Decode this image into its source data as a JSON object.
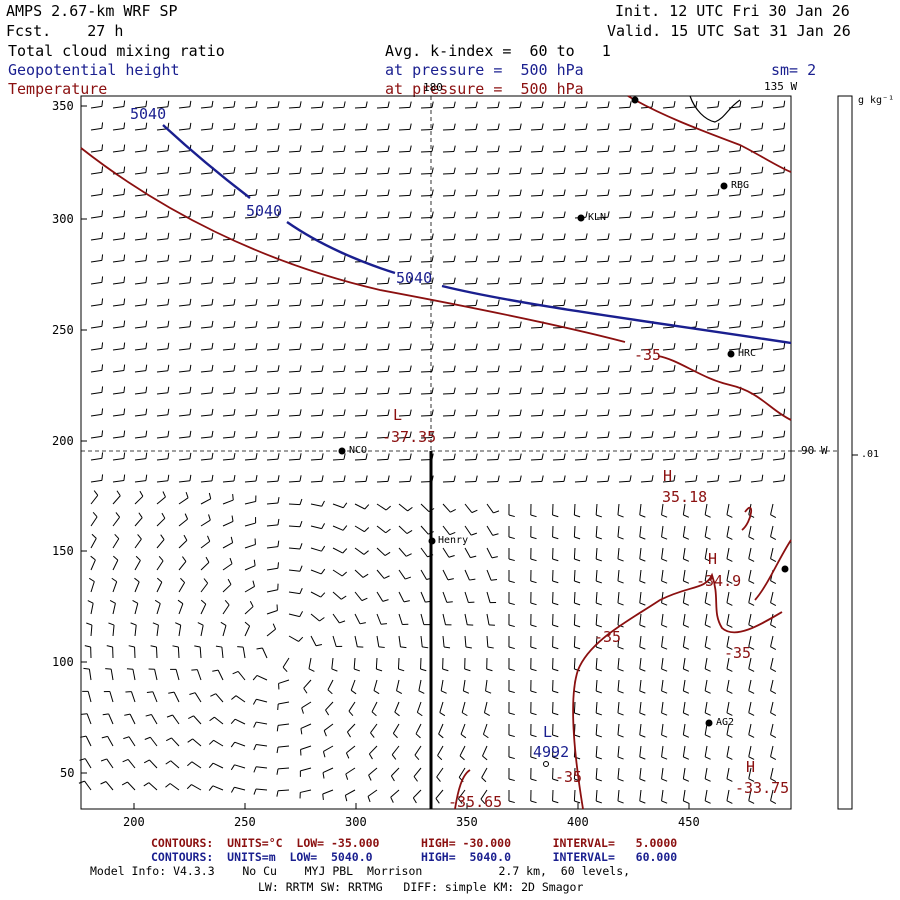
{
  "header": {
    "model_title": "AMPS 2.67-km WRF SP",
    "forecast": "Fcst.    27 h",
    "init": "Init. 12 UTC Fri 30 Jan 26",
    "valid": "Valid. 15 UTC Sat 31 Jan 26",
    "field1": "Total cloud mixing ratio",
    "field2": "Geopotential height",
    "field3": "Temperature",
    "avg": "Avg. k-index =  60 to   1",
    "pressure_blue": "at pressure =  500 hPa",
    "pressure_red": "at pressure =  500 hPa",
    "smoothing": "sm= 2"
  },
  "map": {
    "meridian_180": "180",
    "meridian_135w": "135 W",
    "meridian_90w": "90 W",
    "x_ticks": [
      "200",
      "250",
      "300",
      "350",
      "400",
      "450"
    ],
    "y_ticks": [
      "350",
      "300",
      "250",
      "200",
      "150",
      "100",
      "50"
    ],
    "stations": {
      "rbg": "RBG",
      "kln": "KLN",
      "hrc": "HRC",
      "nco": "NCO",
      "henry": "Henry",
      "ag2": "AG2"
    },
    "height_labels": {
      "h1": "5040",
      "h2": "5040",
      "h3": "5040",
      "low_L": "L",
      "low_val": "4992"
    },
    "temp_labels": {
      "low_L": "L",
      "low_val": "-37.35",
      "high1_H": "H",
      "high1_val": "35.18",
      "high2_H": "H",
      "high2_val": "-34.9",
      "high3_H": "H",
      "high3_val": "-33.75",
      "c_minus35_a": "-35",
      "c_minus35_b": "-35",
      "c_minus35_c": "-35",
      "c_minus35_d": "-35",
      "c_bottom": "-35.65"
    }
  },
  "colorbar": {
    "units": "g kg⁻¹",
    "tick": ".01"
  },
  "footer": {
    "red_contours": "CONTOURS:  UNITS=°C  LOW= -35.000      HIGH= -30.000      INTERVAL=   5.0000",
    "blue_contours": "CONTOURS:  UNITS=m  LOW=  5040.0       HIGH=  5040.0      INTERVAL=   60.000",
    "model_info": "Model Info: V4.3.3    No Cu    MYJ PBL  Morrison           2.7 km,  60 levels,",
    "physics": "LW: RRTM SW: RRTMG   DIFF: simple KM: 2D Smagor"
  },
  "colors": {
    "height_contour": "#1a1f8f",
    "temp_contour": "#8b1010",
    "frame": "#000000"
  }
}
